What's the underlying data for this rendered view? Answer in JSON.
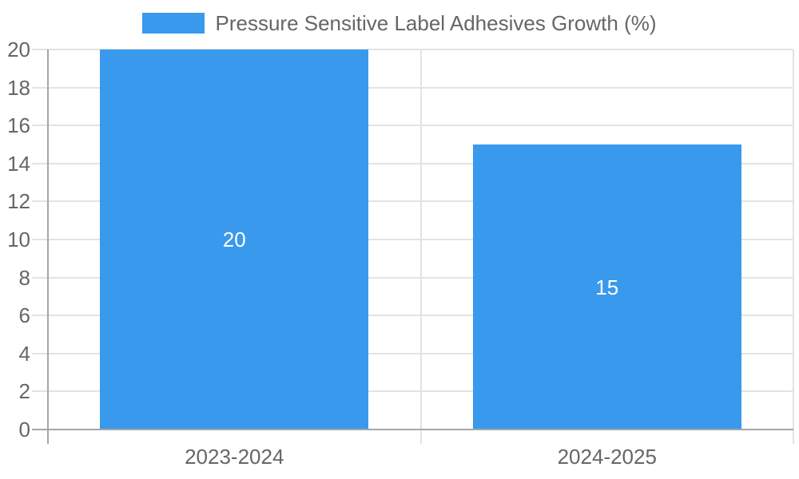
{
  "chart_data": {
    "type": "bar",
    "title": "Pressure Sensitive Label Adhesives Growth (%)",
    "legend": {
      "position": "top",
      "entries": [
        "Pressure Sensitive Label Adhesives Growth (%)"
      ]
    },
    "categories": [
      "2023-2024",
      "2024-2025"
    ],
    "values": [
      20,
      15
    ],
    "bar_value_labels": [
      "20",
      "15"
    ],
    "xlabel": "",
    "ylabel": "",
    "ylim": [
      0,
      20
    ],
    "ytick_step": 2,
    "yticks": [
      0,
      2,
      4,
      6,
      8,
      10,
      12,
      14,
      16,
      18,
      20
    ],
    "grid": true,
    "colors": {
      "bar": "#3999ec",
      "grid": "#e3e3e3",
      "axis": "#a6a6a6",
      "text": "#666666",
      "value_label": "#ffffff",
      "background": "#ffffff"
    }
  }
}
